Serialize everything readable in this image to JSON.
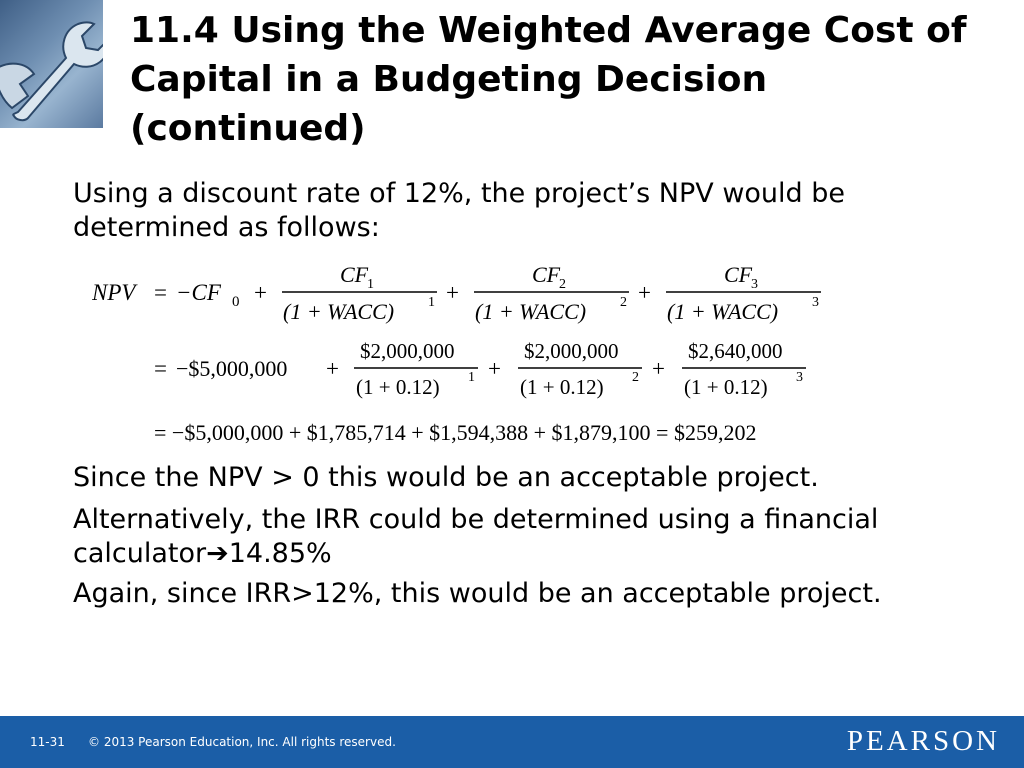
{
  "title": "11.4  Using the Weighted Average Cost of Capital in a Budgeting Decision (continued)",
  "intro": "Using a discount rate of 12%, the project’s NPV would be determined as follows:",
  "equation": {
    "lhs": "NPV",
    "eq": "=",
    "minus_cf0": "−CF",
    "cf0_sub": "0",
    "plus": "+",
    "terms": [
      {
        "num": "CF",
        "num_sub": "1",
        "den": "(1 + WACC)",
        "den_exp": "1"
      },
      {
        "num": "CF",
        "num_sub": "2",
        "den": "(1 + WACC)",
        "den_exp": "2"
      },
      {
        "num": "CF",
        "num_sub": "3",
        "den": "(1 + WACC)",
        "den_exp": "3"
      }
    ],
    "line2_first": "−$5,000,000",
    "line2_terms": [
      {
        "num": "$2,000,000",
        "den": "(1 + 0.12)",
        "den_exp": "1"
      },
      {
        "num": "$2,000,000",
        "den": "(1 + 0.12)",
        "den_exp": "2"
      },
      {
        "num": "$2,640,000",
        "den": "(1 + 0.12)",
        "den_exp": "3"
      }
    ],
    "line3": "= −$5,000,000 + $1,785,714 + $1,594,388 + $1,879,100 = $259,202"
  },
  "statement1": "Since the NPV > 0 this would be an acceptable project.",
  "statement2_text": "Alternatively, the IRR could be determined using a financial calculator",
  "statement2_arrow": "➔",
  "statement2_value": "14.85%",
  "statement3": "Again, since IRR>12%, this would be an acceptable project.",
  "footer": {
    "slide_number": "11-31",
    "copyright": "© 2013 Pearson Education, Inc. All rights reserved.",
    "brand": "PEARSON"
  },
  "colors": {
    "footer_bar": "#1b5ea7",
    "logo": "#5b7aa0"
  },
  "icons": {
    "logo": "wrench-icon"
  }
}
